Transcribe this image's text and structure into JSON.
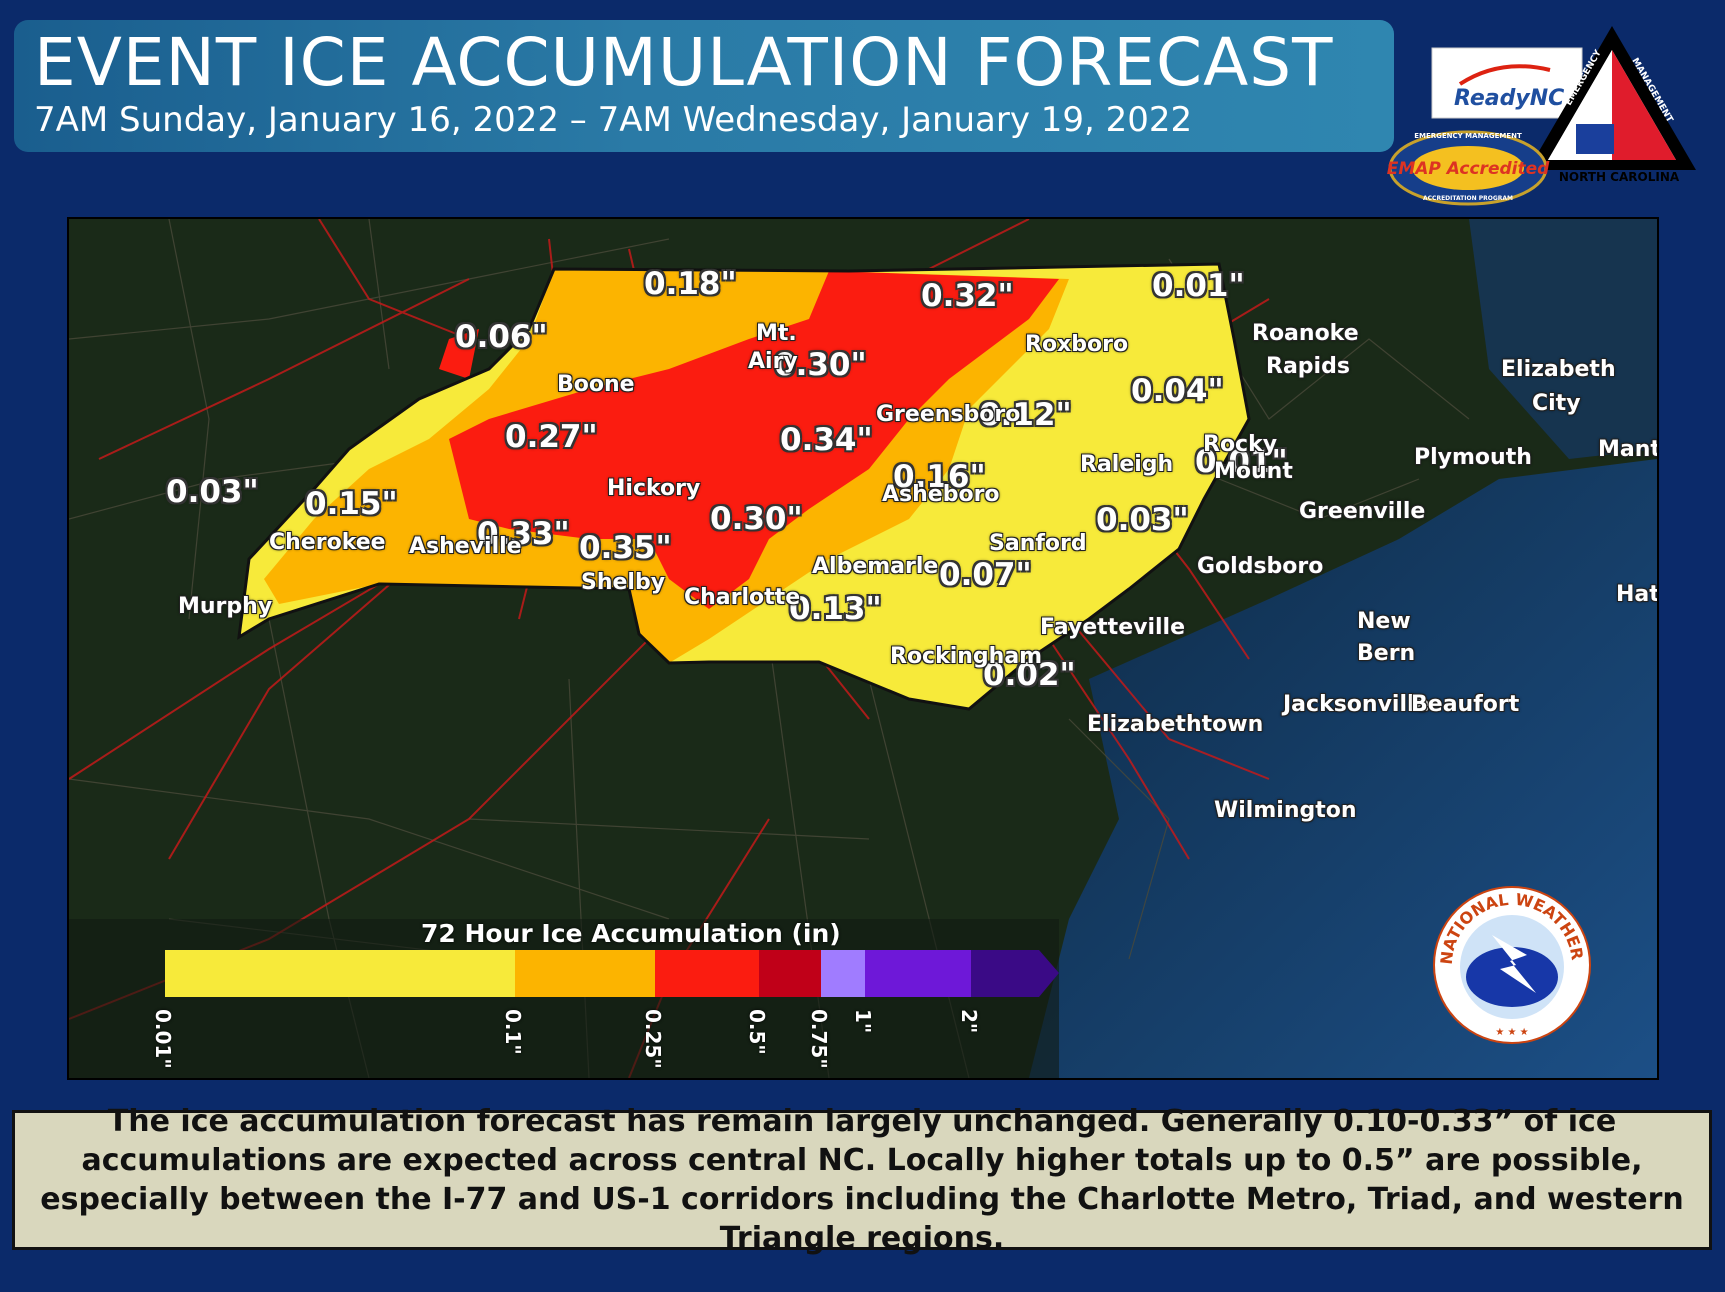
{
  "header": {
    "title": "EVENT ICE ACCUMULATION FORECAST",
    "subtitle": "7AM Sunday, January 16, 2022 – 7AM Wednesday, January 19, 2022"
  },
  "logos": {
    "ready_nc": "ReadyNC",
    "emap": "EMAP Accredited",
    "emap_ring_top": "EMERGENCY MANAGEMENT",
    "emap_ring_bottom": "ACCREDITATION PROGRAM",
    "em_triangle_left": "EMERGENCY",
    "em_triangle_right": "MANAGEMENT",
    "em_triangle_bottom": "NORTH CAROLINA",
    "nws": "NATIONAL WEATHER SERVICE",
    "nws_stars": "★ ★ ★"
  },
  "map": {
    "amounts": [
      {
        "id": "a01",
        "label": "0.18\""
      },
      {
        "id": "a02",
        "label": "0.32\""
      },
      {
        "id": "a03",
        "label": "0.01\""
      },
      {
        "id": "a04",
        "label": "0.06\""
      },
      {
        "id": "a05",
        "label": "0.30\""
      },
      {
        "id": "a06",
        "label": "0.04\""
      },
      {
        "id": "a07",
        "label": "0.12\""
      },
      {
        "id": "a08",
        "label": "0.27\""
      },
      {
        "id": "a09",
        "label": "0.34\""
      },
      {
        "id": "a10",
        "label": "0.01\""
      },
      {
        "id": "a11",
        "label": "0.03\""
      },
      {
        "id": "a12",
        "label": "0.15\""
      },
      {
        "id": "a13",
        "label": "0.16\""
      },
      {
        "id": "a14",
        "label": "0.30\""
      },
      {
        "id": "a15",
        "label": "0.33\""
      },
      {
        "id": "a16",
        "label": "0.35\""
      },
      {
        "id": "a17",
        "label": "0.03\""
      },
      {
        "id": "a18",
        "label": "0.07\""
      },
      {
        "id": "a19",
        "label": "0.13\""
      },
      {
        "id": "a20",
        "label": "0.02\""
      }
    ],
    "cities": [
      "Boone",
      "Mt.",
      "Airy",
      "Roxboro",
      "Roanoke",
      "Rapids",
      "Elizabeth",
      "City",
      "Greensboro",
      "Hickory",
      "Raleigh",
      "Rocky",
      "Mount",
      "Plymouth",
      "Manteo",
      "Cherokee",
      "Asheville",
      "Asheboro",
      "Greenville",
      "Sanford",
      "Shelby",
      "Albemarle",
      "Goldsboro",
      "Murphy",
      "Charlotte",
      "Hatteras",
      "New",
      "Bern",
      "Fayetteville",
      "Rockingham",
      "Jacksonville",
      "Beaufort",
      "Elizabethtown",
      "Wilmington"
    ]
  },
  "legend": {
    "title": "72 Hour Ice Accumulation (in)",
    "bins": [
      {
        "from": "0.01\"",
        "to": "0.1\"",
        "color": "#f7ea3a"
      },
      {
        "from": "0.1\"",
        "to": "0.25\"",
        "color": "#fcb400"
      },
      {
        "from": "0.25\"",
        "to": "0.5\"",
        "color": "#fb1c10"
      },
      {
        "from": "0.5\"",
        "to": "0.75\"",
        "color": "#c00018"
      },
      {
        "from": "0.75\"",
        "to": "1\"",
        "color": "#a07cff"
      },
      {
        "from": "1\"",
        "to": "2\"",
        "color": "#6e18d8"
      },
      {
        "from": "2\"",
        "to": "",
        "color": "#3a0a86"
      }
    ],
    "ticks": [
      "0.01\"",
      "0.1\"",
      "0.25\"",
      "0.5\"",
      "0.75\"",
      "1\"",
      "2\""
    ]
  },
  "footer": {
    "text": "The ice accumulation forecast has remain largely unchanged. Generally 0.10-0.33” of ice accumulations are expected across central NC. Locally higher totals up to 0.5” are possible, especially between the I-77 and US-1 corridors including the Charlotte Metro, Triad, and western Triangle regions."
  },
  "colors": {
    "background": "#0b2a6a",
    "header": "#2a7aa6",
    "footer": "#d9d7bd",
    "ice_low": "#f7ea3a",
    "ice_mid": "#fcb400",
    "ice_high": "#fb1c10"
  }
}
